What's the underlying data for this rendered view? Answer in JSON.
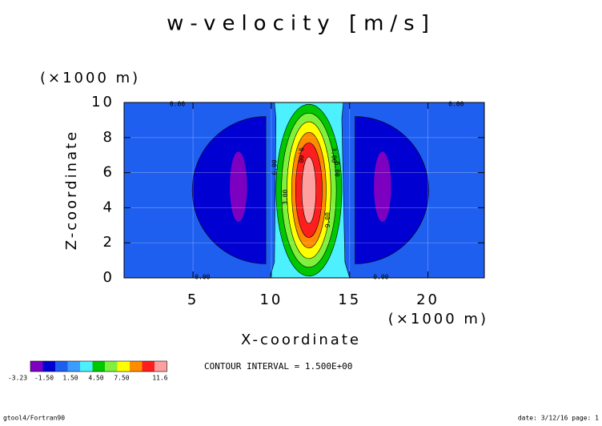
{
  "chart_data": {
    "type": "contour",
    "title": "w-velocity [m/s]",
    "x_label": "X-coordinate",
    "x_unit": "(×1000 m)",
    "y_label": "Z-coordinate",
    "y_unit": "(×1000 m)",
    "xlim": [
      0.6,
      23.6
    ],
    "xticks": [
      5,
      10,
      15,
      20
    ],
    "ylim": [
      0,
      10
    ],
    "yticks": [
      0,
      2,
      4,
      6,
      8,
      10
    ],
    "grid": true,
    "colors": [
      "#7d00c0",
      "#0000d2",
      "#1e5ff0",
      "#3c9cff",
      "#4cf0ff",
      "#00c800",
      "#7ff03c",
      "#ffff00",
      "#ff8c00",
      "#ff1e1e",
      "#ffa0a0"
    ],
    "legend_ticks": [
      -3.23,
      {
        "value": -1.5,
        "label": "-1.50"
      },
      {
        "value": 1.5,
        "label": "1.50"
      },
      {
        "value": 4.5,
        "label": "4.50"
      },
      {
        "value": 7.5,
        "label": "7.50"
      },
      11.6
    ],
    "contour_labels": [
      "0.00",
      "0.00",
      "0.00",
      "0.00",
      "3.00",
      "3.00",
      "6.00",
      "6.00",
      "9.00",
      "9.00"
    ],
    "contour_interval": "CONTOUR INTERVAL = 1.500E+00",
    "footer_left": "gtool4/Fortran90",
    "footer_right": "date: 3/12/16 page: 1"
  }
}
